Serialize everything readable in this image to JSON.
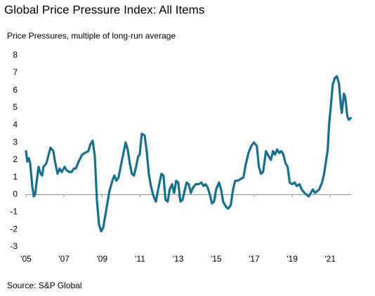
{
  "chart_data": {
    "type": "line",
    "title": "Global Price Pressure Index: All Items",
    "y_label": "Price Pressures, multiple of long-run average",
    "source": "Source: S&P Global",
    "color": "#19708a",
    "xlim": [
      2005,
      2022.1
    ],
    "ylim": [
      -3,
      8
    ],
    "yticks": [
      -3,
      -2,
      -1,
      0,
      1,
      2,
      3,
      4,
      5,
      6,
      7,
      8
    ],
    "xticks": [
      {
        "value": 2005,
        "label": "'05"
      },
      {
        "value": 2007,
        "label": "'07"
      },
      {
        "value": 2009,
        "label": "'09"
      },
      {
        "value": 2011,
        "label": "'11"
      },
      {
        "value": 2013,
        "label": "'13"
      },
      {
        "value": 2015,
        "label": "'15"
      },
      {
        "value": 2017,
        "label": "'17"
      },
      {
        "value": 2019,
        "label": "'19"
      },
      {
        "value": 2021,
        "label": "'21"
      }
    ],
    "x": [
      2005.0,
      2005.07,
      2005.15,
      2005.22,
      2005.33,
      2005.41,
      2005.48,
      2005.59,
      2005.66,
      2005.77,
      2005.85,
      2005.92,
      2006.07,
      2006.29,
      2006.44,
      2006.51,
      2006.66,
      2006.77,
      2006.88,
      2007.03,
      2007.14,
      2007.29,
      2007.4,
      2007.51,
      2007.62,
      2007.77,
      2007.95,
      2008.1,
      2008.28,
      2008.39,
      2008.51,
      2008.62,
      2008.73,
      2008.84,
      2008.95,
      2009.06,
      2009.17,
      2009.28,
      2009.39,
      2009.54,
      2009.65,
      2009.76,
      2009.87,
      2009.98,
      2010.09,
      2010.24,
      2010.35,
      2010.46,
      2010.57,
      2010.68,
      2010.79,
      2010.9,
      2010.98,
      2011.09,
      2011.24,
      2011.35,
      2011.46,
      2011.57,
      2011.68,
      2011.83,
      2011.97,
      2012.12,
      2012.23,
      2012.34,
      2012.45,
      2012.56,
      2012.68,
      2012.79,
      2012.9,
      2013.01,
      2013.12,
      2013.23,
      2013.34,
      2013.45,
      2013.56,
      2013.67,
      2013.78,
      2013.93,
      2014.08,
      2014.23,
      2014.34,
      2014.45,
      2014.56,
      2014.67,
      2014.78,
      2014.89,
      2015.0,
      2015.15,
      2015.26,
      2015.37,
      2015.52,
      2015.63,
      2015.77,
      2015.89,
      2016.0,
      2016.14,
      2016.29,
      2016.44,
      2016.55,
      2016.7,
      2016.85,
      2016.99,
      2017.14,
      2017.25,
      2017.36,
      2017.47,
      2017.62,
      2017.77,
      2017.88,
      2017.99,
      2018.1,
      2018.21,
      2018.32,
      2018.43,
      2018.54,
      2018.65,
      2018.76,
      2018.87,
      2018.99,
      2019.13,
      2019.24,
      2019.39,
      2019.5,
      2019.65,
      2019.76,
      2019.87,
      2019.98,
      2020.09,
      2020.2,
      2020.31,
      2020.42,
      2020.57,
      2020.68,
      2020.79,
      2020.87,
      2020.94,
      2021.05,
      2021.13,
      2021.24,
      2021.35,
      2021.46,
      2021.57,
      2021.61,
      2021.72,
      2021.79,
      2021.9,
      2021.98,
      2022.08
    ],
    "values": [
      2.5,
      1.9,
      2.1,
      1.8,
      0.5,
      -0.1,
      0.0,
      1.0,
      1.6,
      1.2,
      1.1,
      1.6,
      1.8,
      2.7,
      2.5,
      2.0,
      1.2,
      1.5,
      1.3,
      1.6,
      1.4,
      1.3,
      1.3,
      1.5,
      1.5,
      1.9,
      2.3,
      2.4,
      2.5,
      2.9,
      3.1,
      2.2,
      -0.3,
      -1.7,
      -2.1,
      -1.9,
      -1.2,
      -0.5,
      0.2,
      0.8,
      1.1,
      0.8,
      1.0,
      1.6,
      2.2,
      3.0,
      2.6,
      1.8,
      1.2,
      1.1,
      1.6,
      2.2,
      2.3,
      3.5,
      3.4,
      2.5,
      1.2,
      0.5,
      0.0,
      -0.4,
      0.4,
      1.2,
      1.1,
      -0.3,
      -0.4,
      0.3,
      0.6,
      0.1,
      0.8,
      0.7,
      -0.4,
      -0.3,
      0.2,
      0.7,
      0.6,
      0.1,
      0.4,
      0.6,
      0.6,
      0.7,
      0.5,
      0.6,
      0.4,
      0.0,
      -0.5,
      -0.4,
      0.3,
      0.7,
      0.3,
      -0.4,
      -0.7,
      -0.8,
      -0.6,
      0.3,
      0.8,
      0.8,
      0.9,
      1.0,
      1.7,
      2.4,
      2.8,
      3.0,
      2.8,
      1.6,
      1.2,
      1.3,
      2.5,
      2.2,
      2.0,
      2.5,
      2.3,
      2.6,
      2.4,
      2.5,
      2.3,
      1.8,
      1.6,
      0.7,
      0.6,
      0.7,
      0.5,
      0.6,
      0.3,
      0.1,
      0.0,
      -0.1,
      0.1,
      0.3,
      0.1,
      0.2,
      0.3,
      0.7,
      1.2,
      2.0,
      2.6,
      4.0,
      5.3,
      6.3,
      6.7,
      6.8,
      6.4,
      5.0,
      4.7,
      5.8,
      5.6,
      4.5,
      4.3,
      4.4
    ]
  }
}
